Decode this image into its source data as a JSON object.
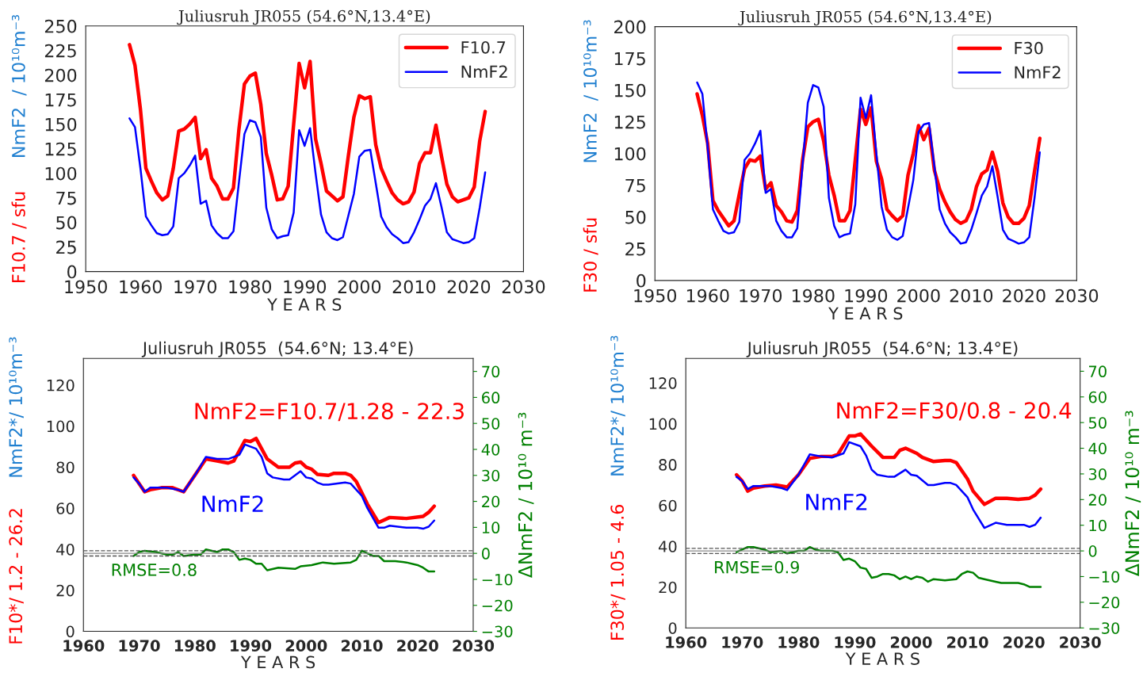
{
  "chart_data": [
    {
      "type": "line",
      "title": "Juliusruh JR055 (54.6°N,13.4°E)",
      "xlabel": "Y E A R S",
      "ylabel": [
        "F10.7 / sfu",
        "NmF2  / 10¹⁰m⁻³"
      ],
      "xlim": [
        1950,
        2030
      ],
      "xticks": [
        1950,
        1960,
        1970,
        1980,
        1990,
        2000,
        2010,
        2020,
        2030
      ],
      "ylim": [
        0,
        250
      ],
      "yticks": [
        0,
        25,
        50,
        75,
        100,
        125,
        150,
        175,
        200,
        225,
        250
      ],
      "legend": "top right",
      "grid": false,
      "x": [
        1958,
        1959,
        1960,
        1961,
        1962,
        1963,
        1964,
        1965,
        1966,
        1967,
        1968,
        1969,
        1970,
        1971,
        1972,
        1973,
        1974,
        1975,
        1976,
        1977,
        1978,
        1979,
        1980,
        1981,
        1982,
        1983,
        1984,
        1985,
        1986,
        1987,
        1988,
        1989,
        1990,
        1991,
        1992,
        1993,
        1994,
        1995,
        1996,
        1997,
        1998,
        1999,
        2000,
        2001,
        2002,
        2003,
        2004,
        2005,
        2006,
        2007,
        2008,
        2009,
        2010,
        2011,
        2012,
        2013,
        2014,
        2015,
        2016,
        2017,
        2018,
        2019,
        2020,
        2021,
        2022,
        2023
      ],
      "series": [
        {
          "name": "F10.7",
          "color": "#ff0000",
          "values": [
            231,
            210,
            165,
            105,
            92,
            80,
            73,
            77,
            105,
            143,
            145,
            150,
            157,
            115,
            124,
            95,
            87,
            74,
            74,
            85,
            145,
            191,
            199,
            202,
            170,
            120,
            98,
            73,
            74,
            87,
            150,
            212,
            187,
            214,
            135,
            110,
            82,
            77,
            72,
            76,
            118,
            157,
            179,
            176,
            178,
            129,
            105,
            92,
            80,
            73,
            69,
            71,
            81,
            110,
            121,
            121,
            149,
            118,
            89,
            76,
            71,
            73,
            75,
            86,
            133,
            163
          ]
        },
        {
          "name": "NmF2",
          "color": "#0000ff",
          "values": [
            156,
            147,
            105,
            56,
            47,
            39,
            37,
            38,
            46,
            95,
            100,
            108,
            118,
            69,
            72,
            47,
            39,
            34,
            34,
            41,
            91,
            140,
            154,
            152,
            137,
            65,
            43,
            34,
            36,
            37,
            60,
            144,
            128,
            146,
            100,
            58,
            40,
            34,
            32,
            35,
            57,
            79,
            117,
            123,
            124,
            90,
            56,
            45,
            38,
            34,
            29,
            30,
            40,
            53,
            67,
            74,
            90,
            66,
            40,
            33,
            31,
            29,
            30,
            34,
            65,
            101
          ]
        }
      ]
    },
    {
      "type": "line",
      "title": "Juliusruh JR055 (54.6°N,13.4°E)",
      "xlabel": "Y E A R S",
      "ylabel": [
        "F30 / sfu",
        "NmF2  / 10¹⁰m⁻³"
      ],
      "xlim": [
        1950,
        2030
      ],
      "xticks": [
        1950,
        1960,
        1970,
        1980,
        1990,
        2000,
        2010,
        2020,
        2030
      ],
      "ylim": [
        0,
        200
      ],
      "yticks": [
        0,
        25,
        50,
        75,
        100,
        125,
        150,
        175,
        200
      ],
      "legend": "top right",
      "grid": false,
      "x": [
        1958,
        1959,
        1960,
        1961,
        1962,
        1963,
        1964,
        1965,
        1966,
        1967,
        1968,
        1969,
        1970,
        1971,
        1972,
        1973,
        1974,
        1975,
        1976,
        1977,
        1978,
        1979,
        1980,
        1981,
        1982,
        1983,
        1984,
        1985,
        1986,
        1987,
        1988,
        1989,
        1990,
        1991,
        1992,
        1993,
        1994,
        1995,
        1996,
        1997,
        1998,
        1999,
        2000,
        2001,
        2002,
        2003,
        2004,
        2005,
        2006,
        2007,
        2008,
        2009,
        2010,
        2011,
        2012,
        2013,
        2014,
        2015,
        2016,
        2017,
        2018,
        2019,
        2020,
        2021,
        2022,
        2023
      ],
      "series": [
        {
          "name": "F30",
          "color": "#ff0000",
          "values": [
            147,
            130,
            108,
            63,
            55,
            49,
            43,
            47,
            68,
            88,
            95,
            94,
            98,
            72,
            77,
            59,
            54,
            47,
            46,
            55,
            95,
            121,
            125,
            127,
            110,
            83,
            67,
            47,
            47,
            55,
            95,
            135,
            123,
            136,
            94,
            80,
            56,
            51,
            47,
            51,
            83,
            100,
            122,
            111,
            120,
            87,
            72,
            62,
            54,
            48,
            45,
            47,
            56,
            74,
            84,
            87,
            101,
            86,
            61,
            50,
            45,
            45,
            49,
            59,
            86,
            112
          ]
        },
        {
          "name": "NmF2",
          "color": "#0000ff",
          "values": [
            156,
            147,
            105,
            56,
            47,
            39,
            37,
            38,
            46,
            95,
            100,
            108,
            118,
            69,
            72,
            47,
            39,
            34,
            34,
            41,
            91,
            140,
            154,
            152,
            137,
            65,
            43,
            34,
            36,
            37,
            60,
            144,
            128,
            146,
            100,
            58,
            40,
            34,
            32,
            35,
            57,
            79,
            117,
            123,
            124,
            90,
            56,
            45,
            38,
            34,
            29,
            30,
            40,
            53,
            67,
            74,
            90,
            66,
            40,
            33,
            31,
            29,
            30,
            34,
            65,
            101
          ]
        }
      ]
    },
    {
      "type": "line",
      "title": "Juliusruh JR055  (54.6°N; 13.4°E)",
      "xlabel": "Y E A R S",
      "ylabel": [
        "F10*/ 1.2 - 26.2",
        "NmF2*/ 10¹⁰m⁻³"
      ],
      "y2label": "ΔNmF2 / 10¹⁰ m⁻³",
      "xlim": [
        1960,
        2030
      ],
      "xticks": [
        1960,
        1970,
        1980,
        1990,
        2000,
        2010,
        2020,
        2030
      ],
      "ylim": [
        0,
        133
      ],
      "yticks": [
        0,
        20,
        40,
        60,
        80,
        100,
        120
      ],
      "y2lim": [
        -30,
        75
      ],
      "y2ticks": [
        {
          "value": -30,
          "label": "−30"
        },
        {
          "value": -20,
          "label": "−20"
        },
        {
          "value": -10,
          "label": "−10"
        },
        0,
        10,
        20,
        30,
        40,
        50,
        60,
        70
      ],
      "legend": false,
      "grid": false,
      "ref_lines": [
        {
          "axis": "y2",
          "value": 1,
          "color": "#555555",
          "line_style": "dashed"
        },
        {
          "axis": "y2",
          "value": 0,
          "color": "#888888",
          "line_style": "solid"
        },
        {
          "axis": "y2",
          "value": -1,
          "color": "#555555",
          "line_style": "dashed"
        }
      ],
      "series": [
        {
          "name": "NmF2=F10.7/1.28 - 22.3",
          "color": "#ff0000",
          "x": [
            1969,
            1970,
            1971,
            1972,
            1974,
            1976,
            1978,
            1980,
            1982,
            1984,
            1986,
            1987,
            1989,
            1990,
            1991,
            1993,
            1995,
            1997,
            1998,
            1999,
            2000,
            2001,
            2002,
            2004,
            2005,
            2007,
            2008,
            2009,
            2011,
            2013,
            2015,
            2018,
            2021,
            2022,
            2023
          ],
          "values": [
            76,
            72,
            68,
            69,
            70,
            70,
            68,
            76,
            84,
            83,
            82,
            83,
            93,
            92.5,
            94,
            84,
            80,
            80,
            82,
            82.5,
            80,
            79,
            76.5,
            76,
            77,
            77,
            76,
            73,
            62,
            53,
            55.5,
            55,
            56,
            58,
            61
          ]
        },
        {
          "name": "NmF2",
          "color": "#0000ff",
          "x": [
            1969,
            1970,
            1971,
            1972,
            1975,
            1977,
            1978,
            1980,
            1982,
            1984,
            1986,
            1988,
            1989,
            1991,
            1992,
            1993,
            1994,
            1996,
            1997,
            1999,
            2000,
            2001,
            2002,
            2003,
            2004,
            2007,
            2008,
            2010,
            2011,
            2013,
            2014,
            2015,
            2018,
            2020,
            2021,
            2022,
            2023
          ],
          "values": [
            75,
            72,
            68,
            70,
            70,
            69,
            68,
            76,
            85,
            84,
            84,
            86,
            91,
            89,
            85,
            77,
            75,
            74,
            74,
            78,
            75,
            74.5,
            72.5,
            71.5,
            71.5,
            72.5,
            72,
            66,
            60,
            50.5,
            50.5,
            51.5,
            50.5,
            50.5,
            50,
            51,
            54
          ]
        },
        {
          "name": "RMSE=0.8",
          "color": "#008000",
          "axis": "y2",
          "x": [
            1969,
            1970,
            1971,
            1973,
            1975,
            1976,
            1977,
            1978,
            1980,
            1981,
            1982,
            1984,
            1985,
            1986,
            1987,
            1988,
            1989,
            1990,
            1991,
            1992,
            1993,
            1995,
            1998,
            1999,
            2001,
            2002,
            2003,
            2005,
            2008,
            2009,
            2010,
            2011,
            2012,
            2013,
            2014,
            2016,
            2018,
            2020,
            2021,
            2022,
            2023
          ],
          "values": [
            -1,
            0.5,
            1,
            0.5,
            -0.5,
            -0.5,
            0.5,
            -1,
            -0.5,
            -0.5,
            1.5,
            0.5,
            1.5,
            1.5,
            0.5,
            -2.5,
            -2,
            -2.5,
            -4,
            -4,
            -6.5,
            -5.5,
            -6,
            -5,
            -4.5,
            -4,
            -3.5,
            -4,
            -3.5,
            -2.5,
            1,
            0,
            -1,
            -1,
            -3,
            -3,
            -3.5,
            -4.5,
            -5.5,
            -7,
            -7
          ]
        }
      ]
    },
    {
      "type": "line",
      "title": "Juliusruh JR055  (54.6°N; 13.4°E)",
      "xlabel": "Y E A R S",
      "ylabel": [
        "F30*/ 1.05 - 4.6",
        "NmF2*/ 10¹⁰m⁻³"
      ],
      "y2label": "ΔNmF2 / 10¹⁰ m⁻³",
      "xlim": [
        1960,
        2030
      ],
      "xticks": [
        1960,
        1970,
        1980,
        1990,
        2000,
        2010,
        2020,
        2030
      ],
      "ylim": [
        0,
        132
      ],
      "yticks": [
        0,
        20,
        40,
        60,
        80,
        100,
        120
      ],
      "y2lim": [
        -30,
        75
      ],
      "y2ticks": [
        {
          "value": -30,
          "label": "−30"
        },
        {
          "value": -20,
          "label": "−20"
        },
        {
          "value": -10,
          "label": "−10"
        },
        0,
        10,
        20,
        30,
        40,
        50,
        60,
        70
      ],
      "legend": false,
      "grid": false,
      "ref_lines": [
        {
          "axis": "y2",
          "value": 1,
          "color": "#555555",
          "line_style": "dashed"
        },
        {
          "axis": "y2",
          "value": 0,
          "color": "#888888",
          "line_style": "solid"
        },
        {
          "axis": "y2",
          "value": -1,
          "color": "#555555",
          "line_style": "dashed"
        }
      ],
      "series": [
        {
          "name": "NmF2=F30/0.8 - 20.4",
          "color": "#ff0000",
          "x": [
            1969,
            1970,
            1971,
            1972,
            1974,
            1976,
            1978,
            1980,
            1982,
            1984,
            1986,
            1987,
            1989,
            1990,
            1991,
            1993,
            1995,
            1997,
            1998,
            1999,
            2001,
            2002,
            2004,
            2006,
            2007,
            2008,
            2010,
            2011,
            2013,
            2015,
            2017,
            2019,
            2021,
            2022,
            2023
          ],
          "values": [
            75,
            72,
            67,
            68.5,
            69.5,
            70,
            69,
            75,
            83,
            84,
            84,
            85,
            94,
            94,
            95,
            89,
            83.5,
            83.5,
            87,
            88,
            85.5,
            83.5,
            81.5,
            82,
            82,
            81,
            73,
            67,
            60.5,
            63.5,
            63.5,
            63,
            63.5,
            65,
            68
          ]
        },
        {
          "name": "NmF2",
          "color": "#0000ff",
          "x": [
            1969,
            1970,
            1971,
            1972,
            1975,
            1977,
            1978,
            1980,
            1982,
            1984,
            1986,
            1988,
            1989,
            1991,
            1992,
            1993,
            1994,
            1996,
            1997,
            1999,
            2000,
            2001,
            2003,
            2004,
            2006,
            2007,
            2008,
            2009,
            2010,
            2011,
            2013,
            2015,
            2017,
            2020,
            2021,
            2022,
            2023
          ],
          "values": [
            74,
            72,
            68,
            69.5,
            69.5,
            68.5,
            67.5,
            75,
            85,
            84,
            83.5,
            85.5,
            91,
            89,
            84.5,
            77.5,
            75,
            74,
            74,
            77.5,
            75,
            74.5,
            70,
            70,
            71,
            71,
            70,
            67,
            64,
            58,
            49,
            51.5,
            50.5,
            50.5,
            49.5,
            50.5,
            54
          ]
        },
        {
          "name": "RMSE=0.9",
          "color": "#008000",
          "axis": "y2",
          "x": [
            1969,
            1970,
            1971,
            1972,
            1974,
            1975,
            1977,
            1978,
            1980,
            1981,
            1982,
            1983,
            1984,
            1986,
            1987,
            1988,
            1989,
            1990,
            1991,
            1992,
            1993,
            1994,
            1995,
            1996,
            1997,
            1998,
            1999,
            2000,
            2001,
            2002,
            2003,
            2004,
            2006,
            2008,
            2009,
            2010,
            2011,
            2012,
            2013,
            2015,
            2016,
            2019,
            2020,
            2021,
            2023
          ],
          "values": [
            -0.5,
            0.5,
            1.5,
            1.5,
            0.5,
            -0.5,
            0,
            -1,
            0,
            0,
            1.5,
            0.5,
            0,
            0,
            -0.5,
            -3.5,
            -3,
            -4,
            -6.5,
            -7,
            -10.5,
            -10,
            -9,
            -9,
            -9.5,
            -11,
            -10,
            -11,
            -10,
            -10.5,
            -12,
            -11,
            -11.5,
            -11,
            -9,
            -8,
            -8.5,
            -10.5,
            -11,
            -12,
            -12.5,
            -12.5,
            -13,
            -14,
            -14
          ]
        }
      ]
    }
  ]
}
